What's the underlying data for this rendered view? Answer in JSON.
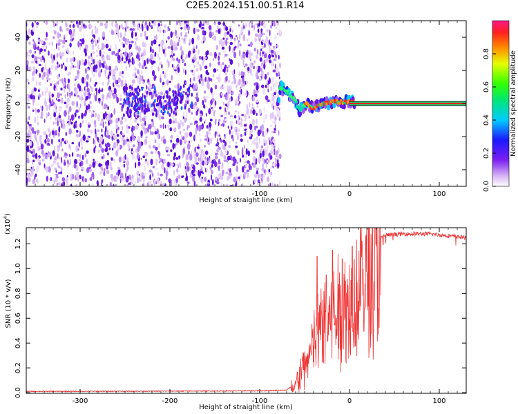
{
  "title": "C2E5.2024.151.00.51.R14",
  "chart_data": [
    {
      "type": "heatmap",
      "xlabel": "Height of straight line (km)",
      "ylabel": "Frequency (Hz)",
      "xlim": [
        -360,
        130
      ],
      "ylim": [
        -50,
        50
      ],
      "xticks": [
        -300,
        -200,
        -100,
        0,
        100
      ],
      "yticks": [
        -40,
        -20,
        0,
        20,
        40
      ],
      "noise_region_x": [
        -360,
        -77
      ],
      "signal_track": [
        {
          "x": -78,
          "y": 10
        },
        {
          "x": -72,
          "y": 8
        },
        {
          "x": -66,
          "y": 5
        },
        {
          "x": -60,
          "y": 2
        },
        {
          "x": -56,
          "y": -4
        },
        {
          "x": -52,
          "y": -2
        },
        {
          "x": -48,
          "y": 0
        },
        {
          "x": -44,
          "y": -2
        },
        {
          "x": -40,
          "y": -3
        },
        {
          "x": -35,
          "y": -1
        },
        {
          "x": -28,
          "y": 0
        },
        {
          "x": -20,
          "y": 1
        },
        {
          "x": -12,
          "y": 1
        },
        {
          "x": -5,
          "y": 1
        },
        {
          "x": 0,
          "y": 1
        },
        {
          "x": 130,
          "y": 0
        }
      ],
      "colorbar": {
        "label": "Normalized spectral amplitude",
        "ticks": [
          0.0,
          0.2,
          0.4,
          0.6,
          0.8
        ],
        "range": [
          0,
          1
        ]
      }
    },
    {
      "type": "line",
      "xlabel": "Height of straight line (km)",
      "ylabel": "SNR (10 * v/v)",
      "scale_label": "(x10",
      "scale_exp": "4",
      "scale_close": ")",
      "xlim": [
        -360,
        130
      ],
      "ylim": [
        -0.005,
        1.33
      ],
      "xticks": [
        -300,
        -200,
        -100,
        0,
        100
      ],
      "yticks": [
        0.0,
        0.2,
        0.4,
        0.6,
        0.8,
        1.0,
        1.2
      ],
      "series": [
        {
          "color": "#ee3333",
          "profile": [
            {
              "x": -360,
              "y": 0.01
            },
            {
              "x": -230,
              "y": 0.012
            },
            {
              "x": -100,
              "y": 0.015
            },
            {
              "x": -70,
              "y": 0.02
            },
            {
              "x": -60,
              "y": 0.08
            },
            {
              "x": -50,
              "y": 0.25
            },
            {
              "x": -40,
              "y": 0.45
            },
            {
              "x": -30,
              "y": 0.65
            },
            {
              "x": -20,
              "y": 0.7
            },
            {
              "x": -10,
              "y": 0.78
            },
            {
              "x": 0,
              "y": 0.84
            },
            {
              "x": 10,
              "y": 0.95
            },
            {
              "x": 20,
              "y": 1.1
            },
            {
              "x": 30,
              "y": 1.22
            },
            {
              "x": 40,
              "y": 1.27
            },
            {
              "x": 60,
              "y": 1.28
            },
            {
              "x": 90,
              "y": 1.28
            },
            {
              "x": 130,
              "y": 1.25
            }
          ],
          "peaks": [
            {
              "x": -36,
              "y": 1.1
            },
            {
              "x": -26,
              "y": 0.95
            },
            {
              "x": -19,
              "y": 1.15
            },
            {
              "x": -8,
              "y": 1.08
            },
            {
              "x": 3,
              "y": 1.18
            },
            {
              "x": 14,
              "y": 1.22
            }
          ]
        }
      ]
    }
  ]
}
